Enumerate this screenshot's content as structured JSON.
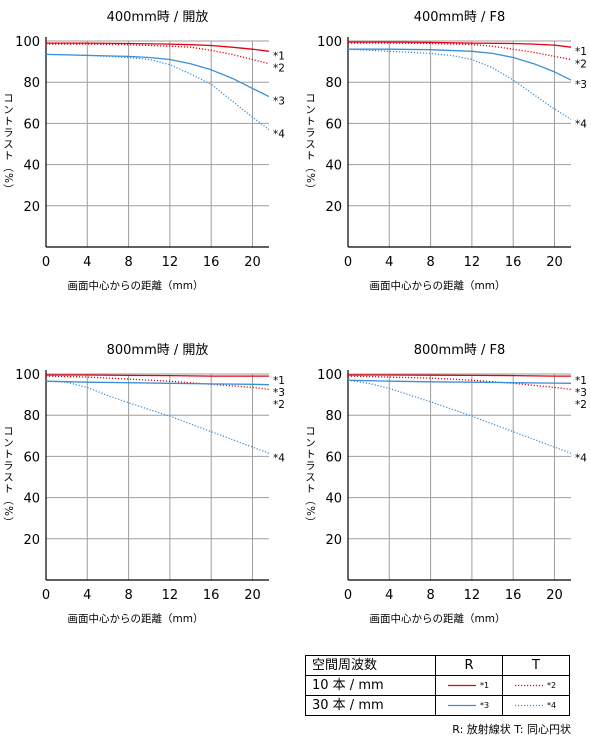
{
  "chart_data": [
    {
      "type": "line",
      "title": "400mm時 / 開放",
      "xlabel": "画面中心からの距離（mm）",
      "ylabel": "コントラスト（%）",
      "xlim": [
        0,
        21.6
      ],
      "ylim": [
        0,
        100
      ],
      "xticks": [
        0,
        4,
        8,
        12,
        16,
        20
      ],
      "yticks": [
        20,
        40,
        60,
        80,
        100
      ],
      "grid": true,
      "series": [
        {
          "name": "*1",
          "color": "#e60012",
          "style": "solid",
          "x": [
            0,
            4,
            8,
            12,
            14,
            16,
            18,
            20,
            21.6
          ],
          "y": [
            99,
            99,
            98.8,
            98.5,
            98.2,
            97.8,
            97,
            96,
            95
          ]
        },
        {
          "name": "*2",
          "color": "#e60012",
          "style": "dotted",
          "x": [
            0,
            4,
            8,
            12,
            14,
            16,
            18,
            20,
            21.6
          ],
          "y": [
            98.5,
            98.5,
            98.2,
            97.5,
            97,
            95.5,
            93.5,
            91,
            89
          ]
        },
        {
          "name": "*3",
          "color": "#3b8fd6",
          "style": "solid",
          "x": [
            0,
            4,
            8,
            10,
            12,
            14,
            16,
            18,
            20,
            21.6
          ],
          "y": [
            93.5,
            93,
            92.5,
            92,
            91,
            89,
            86,
            82,
            77,
            73
          ]
        },
        {
          "name": "*4",
          "color": "#3b8fd6",
          "style": "dotted",
          "x": [
            0,
            4,
            8,
            10,
            12,
            14,
            16,
            18,
            20,
            21.6
          ],
          "y": [
            93.5,
            93,
            92,
            91,
            88.5,
            84,
            79,
            71,
            63,
            57
          ]
        }
      ]
    },
    {
      "type": "line",
      "title": "400mm時 / F8",
      "xlabel": "画面中心からの距離（mm）",
      "ylabel": "コントラスト（%）",
      "xlim": [
        0,
        21.6
      ],
      "ylim": [
        0,
        100
      ],
      "xticks": [
        0,
        4,
        8,
        12,
        16,
        20
      ],
      "yticks": [
        20,
        40,
        60,
        80,
        100
      ],
      "grid": true,
      "series": [
        {
          "name": "*1",
          "color": "#e60012",
          "style": "solid",
          "x": [
            0,
            4,
            8,
            12,
            16,
            18,
            20,
            21.6
          ],
          "y": [
            99.5,
            99.5,
            99.3,
            99,
            98.8,
            98.5,
            98,
            97
          ]
        },
        {
          "name": "*2",
          "color": "#e60012",
          "style": "dotted",
          "x": [
            0,
            4,
            8,
            12,
            14,
            16,
            18,
            20,
            21.6
          ],
          "y": [
            99,
            99,
            98.8,
            98.3,
            97.5,
            96,
            94.5,
            92.5,
            91
          ]
        },
        {
          "name": "*3",
          "color": "#3b8fd6",
          "style": "solid",
          "x": [
            0,
            4,
            8,
            12,
            14,
            16,
            18,
            20,
            21.6
          ],
          "y": [
            96,
            96,
            95.8,
            95,
            94,
            92,
            89,
            85,
            81
          ]
        },
        {
          "name": "*4",
          "color": "#3b8fd6",
          "style": "dotted",
          "x": [
            0,
            4,
            8,
            10,
            12,
            14,
            16,
            18,
            20,
            21.6
          ],
          "y": [
            96,
            95,
            94,
            93,
            91,
            87,
            81,
            74,
            67,
            62
          ]
        }
      ]
    },
    {
      "type": "line",
      "title": "800mm時 / 開放",
      "xlabel": "画面中心からの距離（mm）",
      "ylabel": "コントラスト（%）",
      "xlim": [
        0,
        21.6
      ],
      "ylim": [
        0,
        100
      ],
      "xticks": [
        0,
        4,
        8,
        12,
        16,
        20
      ],
      "yticks": [
        20,
        40,
        60,
        80,
        100
      ],
      "grid": true,
      "series": [
        {
          "name": "*1",
          "color": "#e60012",
          "style": "solid",
          "x": [
            0,
            4,
            8,
            12,
            16,
            20,
            21.6
          ],
          "y": [
            99.5,
            99.5,
            99.3,
            99.2,
            99,
            99,
            99
          ]
        },
        {
          "name": "*2",
          "color": "#e60012",
          "style": "dotted",
          "x": [
            0,
            4,
            8,
            12,
            16,
            20,
            21.6
          ],
          "y": [
            99,
            98.5,
            97.5,
            96.5,
            95,
            93.5,
            92.5
          ]
        },
        {
          "name": "*3",
          "color": "#3b8fd6",
          "style": "solid",
          "x": [
            0,
            4,
            8,
            12,
            16,
            20,
            21.6
          ],
          "y": [
            96.5,
            96,
            95.8,
            95.5,
            95.2,
            95,
            94.8
          ]
        },
        {
          "name": "*4",
          "color": "#3b8fd6",
          "style": "dotted",
          "x": [
            0,
            2,
            4,
            6,
            8,
            12,
            16,
            20,
            21.6
          ],
          "y": [
            96.5,
            96,
            93.5,
            89.5,
            86,
            79.5,
            72,
            64.5,
            61.5
          ]
        }
      ]
    },
    {
      "type": "line",
      "title": "800mm時 / F8",
      "xlabel": "画面中心からの距離（mm）",
      "ylabel": "コントラスト（%）",
      "xlim": [
        0,
        21.6
      ],
      "ylim": [
        0,
        100
      ],
      "xticks": [
        0,
        4,
        8,
        12,
        16,
        20
      ],
      "yticks": [
        20,
        40,
        60,
        80,
        100
      ],
      "grid": true,
      "series": [
        {
          "name": "*1",
          "color": "#e60012",
          "style": "solid",
          "x": [
            0,
            4,
            8,
            12,
            16,
            20,
            21.6
          ],
          "y": [
            99.5,
            99.5,
            99.4,
            99.3,
            99.2,
            99,
            99
          ]
        },
        {
          "name": "*2",
          "color": "#e60012",
          "style": "dotted",
          "x": [
            0,
            4,
            8,
            12,
            16,
            20,
            21.6
          ],
          "y": [
            99,
            98.5,
            98,
            97,
            95.5,
            93.5,
            92.5
          ]
        },
        {
          "name": "*3",
          "color": "#3b8fd6",
          "style": "solid",
          "x": [
            0,
            4,
            8,
            12,
            16,
            20,
            21.6
          ],
          "y": [
            97,
            96.5,
            96.2,
            96,
            95.8,
            95.6,
            95.5
          ]
        },
        {
          "name": "*4",
          "color": "#3b8fd6",
          "style": "dotted",
          "x": [
            0,
            2,
            4,
            8,
            12,
            16,
            20,
            21.6
          ],
          "y": [
            97,
            95.5,
            93,
            86.5,
            79.5,
            72,
            64.5,
            61.5
          ]
        }
      ]
    }
  ],
  "legend_table": {
    "header": [
      "空間周波数",
      "R",
      "T"
    ],
    "rows": [
      {
        "label": "10 本 / mm",
        "r": "*1",
        "t": "*2"
      },
      {
        "label": "30 本 / mm",
        "r": "*3",
        "t": "*4"
      }
    ]
  },
  "footnote": "R: 放射線状  T: 同心円状",
  "colors": {
    "red": "#e60012",
    "blue": "#3b8fd6",
    "grid": "#9e9e9e"
  }
}
